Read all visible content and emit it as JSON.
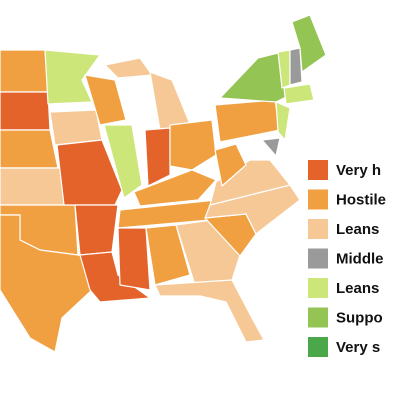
{
  "legend": {
    "items": [
      {
        "label": "Very h",
        "color": "#e4632a"
      },
      {
        "label": "Hostile",
        "color": "#f0a040"
      },
      {
        "label": "Leans",
        "color": "#f6c896"
      },
      {
        "label": "Middle",
        "color": "#9a9a9a"
      },
      {
        "label": "Leans",
        "color": "#cde67a"
      },
      {
        "label": "Suppo",
        "color": "#93c454"
      },
      {
        "label": "Very s",
        "color": "#4aa84a"
      }
    ]
  }
}
